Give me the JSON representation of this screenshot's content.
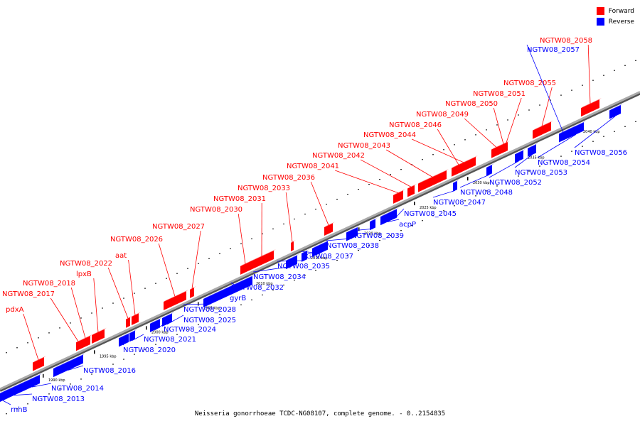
{
  "colors": {
    "forward": "#ff0000",
    "reverse": "#0000ff",
    "axis": "#888888",
    "label_line_fwd": "#ff0000",
    "label_line_rev": "#0000ff"
  },
  "legend": [
    {
      "label": "Forward",
      "color": "#ff0000"
    },
    {
      "label": "Reverse",
      "color": "#0000ff"
    }
  ],
  "caption": "Neisseria gonorrhoeae TCDC-NG08107, complete genome. - 0..2154835",
  "scale_labels": [
    "1990 kbp",
    "1995 kbp",
    "2000 kbp",
    "2005 kbp",
    "2010 kbp",
    "2015 kbp",
    "2020 kbp",
    "2025 kbp",
    "2030 kbp",
    "2035 kbp",
    "2040 kbp"
  ],
  "genes": [
    {
      "name": "rnhB",
      "strand": "reverse"
    },
    {
      "name": "NGTW08_2013",
      "strand": "reverse"
    },
    {
      "name": "NGTW08_2014",
      "strand": "reverse"
    },
    {
      "name": "pdxA",
      "strand": "forward"
    },
    {
      "name": "NGTW08_2016",
      "strand": "reverse"
    },
    {
      "name": "NGTW08_2017",
      "strand": "forward"
    },
    {
      "name": "NGTW08_2018",
      "strand": "forward"
    },
    {
      "name": "lpxB",
      "strand": "forward"
    },
    {
      "name": "NGTW08_2020",
      "strand": "reverse"
    },
    {
      "name": "NGTW08_2021",
      "strand": "reverse"
    },
    {
      "name": "NGTW08_2022",
      "strand": "forward"
    },
    {
      "name": "aat",
      "strand": "forward"
    },
    {
      "name": "NGTW08_2024",
      "strand": "reverse"
    },
    {
      "name": "NGTW08_2025",
      "strand": "reverse"
    },
    {
      "name": "NGTW08_2026",
      "strand": "forward"
    },
    {
      "name": "NGTW08_2027",
      "strand": "forward"
    },
    {
      "name": "NGTW08_2028",
      "strand": "reverse"
    },
    {
      "name": "gyrB",
      "strand": "reverse"
    },
    {
      "name": "NGTW08_2030",
      "strand": "forward"
    },
    {
      "name": "NGTW08_2031",
      "strand": "forward"
    },
    {
      "name": "NGTW08_2032",
      "strand": "reverse"
    },
    {
      "name": "NGTW08_2033",
      "strand": "forward"
    },
    {
      "name": "NGTW08_2034",
      "strand": "reverse"
    },
    {
      "name": "NGTW08_2035",
      "strand": "reverse"
    },
    {
      "name": "NGTW08_2036",
      "strand": "forward"
    },
    {
      "name": "NGTW08_2037",
      "strand": "reverse"
    },
    {
      "name": "NGTW08_2038",
      "strand": "reverse"
    },
    {
      "name": "NGTW08_2039",
      "strand": "reverse"
    },
    {
      "name": "acpP",
      "strand": "reverse"
    },
    {
      "name": "NGTW08_2041",
      "strand": "forward"
    },
    {
      "name": "NGTW08_2042",
      "strand": "forward"
    },
    {
      "name": "NGTW08_2043",
      "strand": "forward"
    },
    {
      "name": "NGTW08_2044",
      "strand": "forward"
    },
    {
      "name": "NGTW08_2045",
      "strand": "reverse"
    },
    {
      "name": "NGTW08_2046",
      "strand": "forward"
    },
    {
      "name": "NGTW08_2047",
      "strand": "reverse"
    },
    {
      "name": "NGTW08_2048",
      "strand": "reverse"
    },
    {
      "name": "NGTW08_2049",
      "strand": "forward"
    },
    {
      "name": "NGTW08_2050",
      "strand": "forward"
    },
    {
      "name": "NGTW08_2051",
      "strand": "forward"
    },
    {
      "name": "NGTW08_2052",
      "strand": "reverse"
    },
    {
      "name": "NGTW08_2053",
      "strand": "reverse"
    },
    {
      "name": "NGTW08_2054",
      "strand": "reverse"
    },
    {
      "name": "NGTW08_2055",
      "strand": "forward"
    },
    {
      "name": "NGTW08_2056",
      "strand": "reverse"
    },
    {
      "name": "NGTW08_2057",
      "strand": "reverse"
    },
    {
      "name": "NGTW08_2058",
      "strand": "forward"
    }
  ]
}
